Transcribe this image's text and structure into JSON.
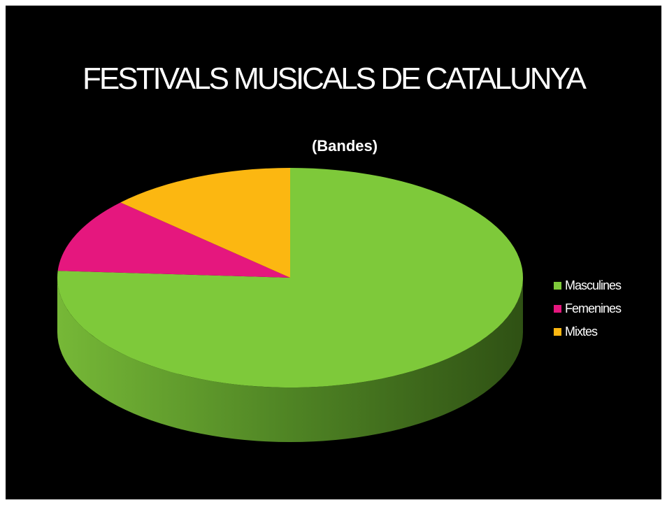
{
  "slide": {
    "title": "FESTIVALS MUSICALS DE CATALUNYA",
    "background": "#000000"
  },
  "chart_data": {
    "type": "pie",
    "style": "3d",
    "title": "(Bandes)",
    "categories": [
      "Masculines",
      "Femenines",
      "Mixtes"
    ],
    "values": [
      76,
      11,
      13
    ],
    "colors": [
      "#7ec93a",
      "#e5177e",
      "#fcb711"
    ],
    "legend": "right"
  }
}
